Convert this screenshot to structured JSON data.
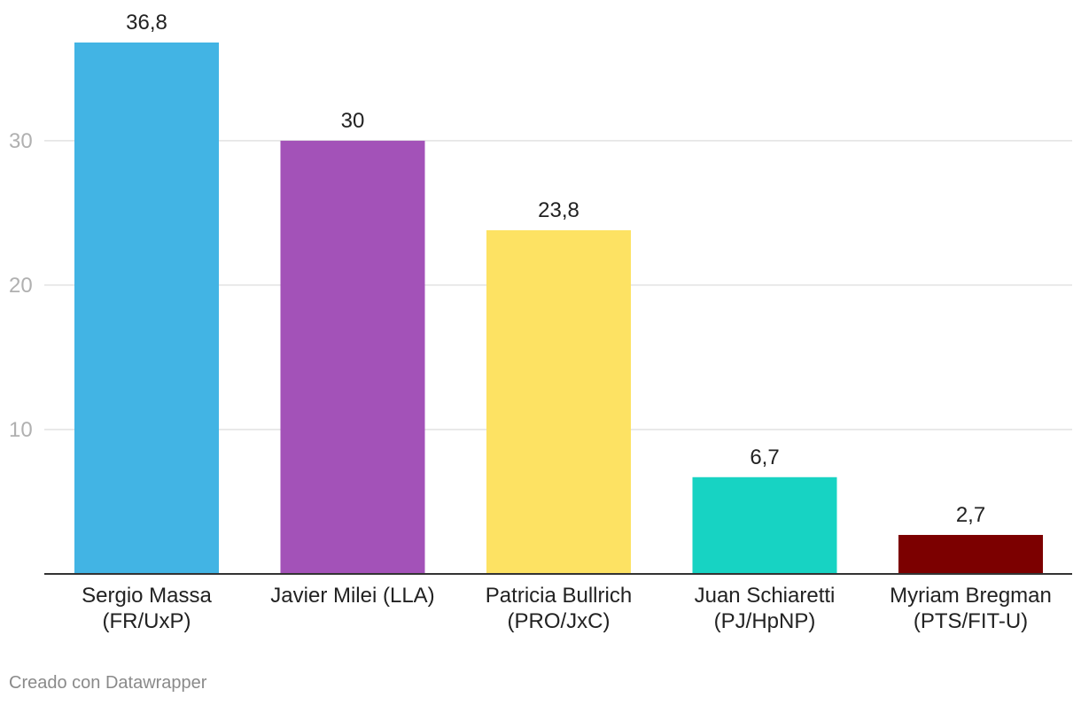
{
  "chart_data": {
    "type": "bar",
    "categories": [
      [
        "Sergio Massa",
        "(FR/UxP)"
      ],
      [
        "Javier Milei (LLA)"
      ],
      [
        "Patricia Bullrich",
        "(PRO/JxC)"
      ],
      [
        "Juan Schiaretti",
        "(PJ/HpNP)"
      ],
      [
        "Myriam Bregman",
        "(PTS/FIT-U)"
      ]
    ],
    "values": [
      36.8,
      30,
      23.8,
      6.7,
      2.7
    ],
    "value_labels": [
      "36,8",
      "30",
      "23,8",
      "6,7",
      "2,7"
    ],
    "colors": [
      "#42b4e4",
      "#a352b8",
      "#fde263",
      "#17d3c3",
      "#7c0000"
    ],
    "yticks": [
      10,
      20,
      30
    ],
    "ylim": [
      0,
      36.8
    ],
    "grid": true,
    "title": "",
    "xlabel": "",
    "ylabel": ""
  },
  "footer": {
    "credit": "Creado con Datawrapper"
  }
}
